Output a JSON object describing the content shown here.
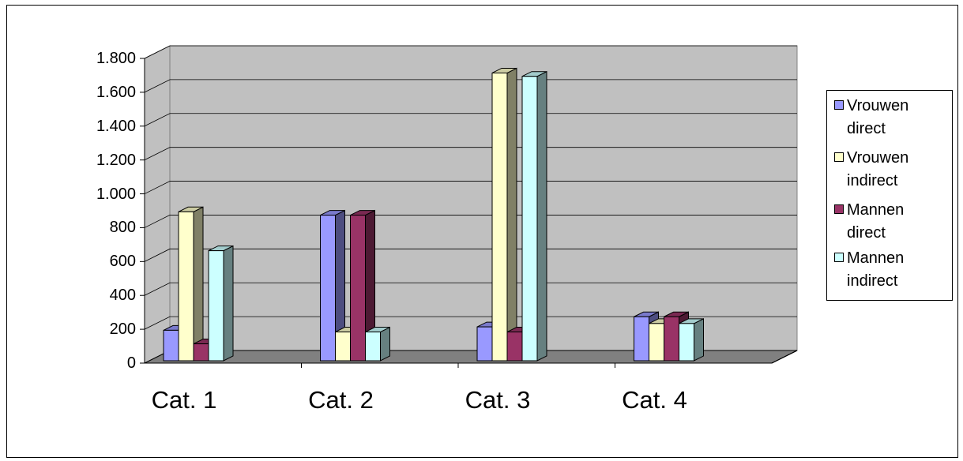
{
  "chart_data": {
    "type": "bar3d",
    "categories": [
      "Cat. 1",
      "Cat. 2",
      "Cat. 3",
      "Cat. 4"
    ],
    "series": [
      {
        "name": "Vrouwen direct",
        "color": "#9999ff",
        "values": [
          180,
          860,
          200,
          260
        ]
      },
      {
        "name": "Vrouwen indirect",
        "color": "#ffffcc",
        "values": [
          880,
          170,
          1700,
          220
        ]
      },
      {
        "name": "Mannen direct",
        "color": "#993366",
        "values": [
          100,
          860,
          170,
          260
        ]
      },
      {
        "name": "Mannen indirect",
        "color": "#ccffff",
        "values": [
          650,
          170,
          1680,
          220
        ]
      }
    ],
    "ylim": [
      0,
      1800
    ],
    "yticks": [
      0,
      200,
      400,
      600,
      800,
      {
        "value": 1000,
        "label": "1.000"
      },
      {
        "value": 1200,
        "label": "1.200"
      },
      {
        "value": 1400,
        "label": "1.400"
      },
      {
        "value": 1600,
        "label": "1.600"
      },
      {
        "value": 1800,
        "label": "1.800"
      }
    ],
    "grid": true,
    "legend": "right"
  }
}
